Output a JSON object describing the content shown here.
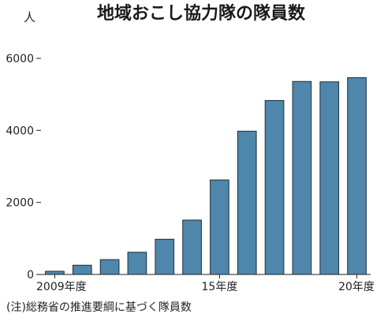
{
  "chart_data": {
    "type": "bar",
    "title": "地域おこし協力隊の隊員数",
    "unit": "人",
    "categories": [
      "2009",
      "2010",
      "2011",
      "2012",
      "2013",
      "2014",
      "2015",
      "2016",
      "2017",
      "2018",
      "2019",
      "2020"
    ],
    "values": [
      89,
      257,
      413,
      617,
      978,
      1511,
      2625,
      3978,
      4830,
      5359,
      5349,
      5464
    ],
    "x_tick_labels": [
      {
        "category": "2009",
        "label": "2009年度"
      },
      {
        "category": "2015",
        "label": "15年度"
      },
      {
        "category": "2020",
        "label": "20年度"
      }
    ],
    "y_ticks": [
      0,
      2000,
      4000,
      6000
    ],
    "ylim": [
      0,
      6500
    ],
    "grid": false,
    "bar_color": "#4f86ac",
    "note": "(注)総務省の推進要綱に基づく隊員数"
  }
}
